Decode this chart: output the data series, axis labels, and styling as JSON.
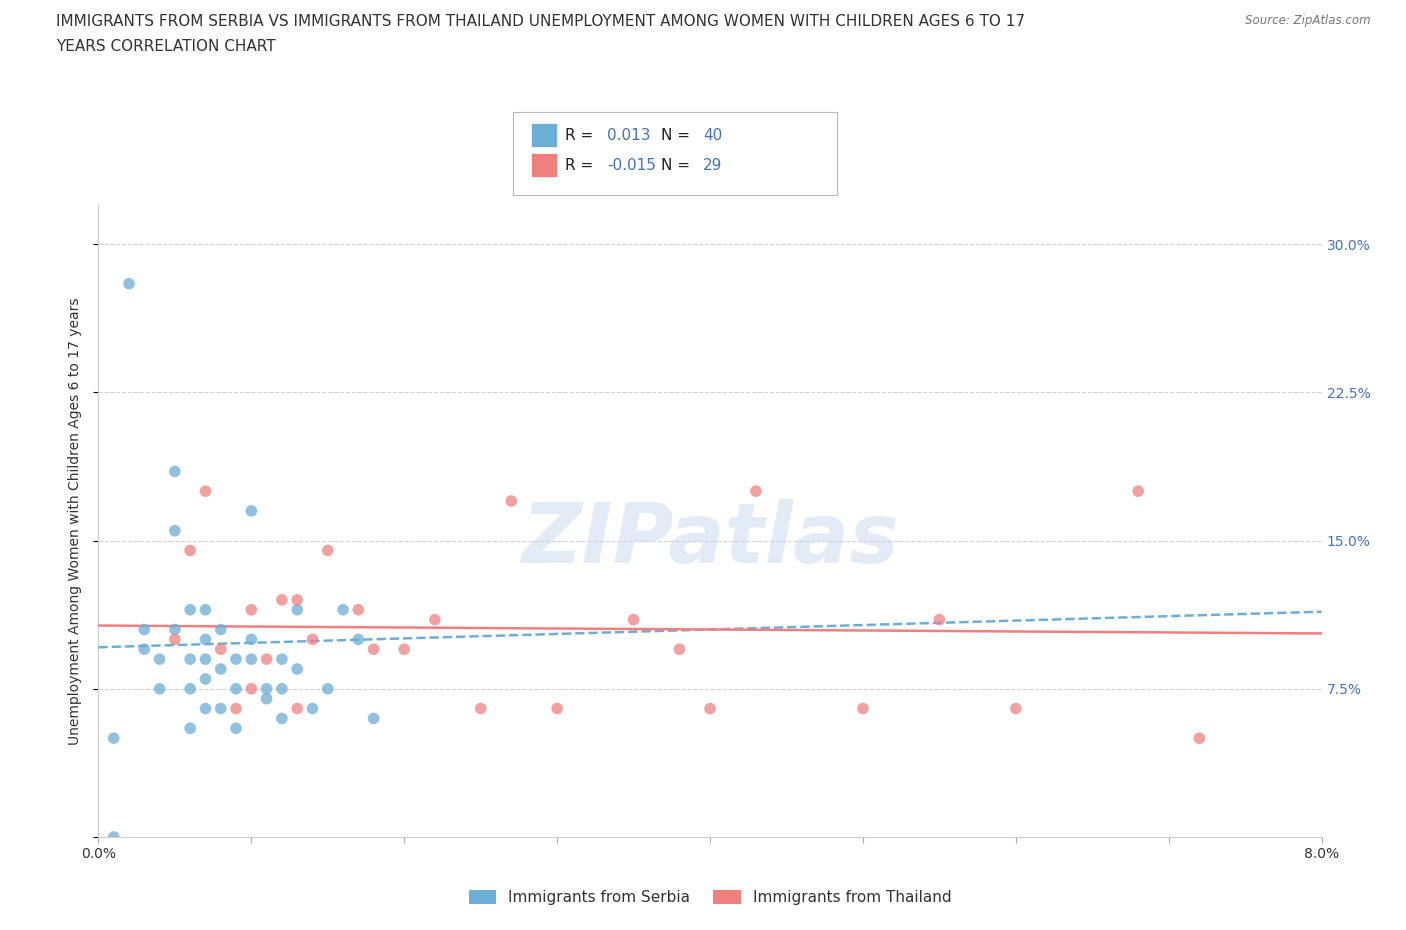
{
  "title_line1": "IMMIGRANTS FROM SERBIA VS IMMIGRANTS FROM THAILAND UNEMPLOYMENT AMONG WOMEN WITH CHILDREN AGES 6 TO 17",
  "title_line2": "YEARS CORRELATION CHART",
  "source": "Source: ZipAtlas.com",
  "ylabel": "Unemployment Among Women with Children Ages 6 to 17 years",
  "xlim": [
    0.0,
    0.08
  ],
  "ylim": [
    0.0,
    0.32
  ],
  "xticks": [
    0.0,
    0.01,
    0.02,
    0.03,
    0.04,
    0.05,
    0.06,
    0.07,
    0.08
  ],
  "ytick_positions": [
    0.0,
    0.075,
    0.15,
    0.225,
    0.3
  ],
  "ytick_labels_right": [
    "",
    "7.5%",
    "15.0%",
    "22.5%",
    "30.0%"
  ],
  "serbia_color": "#6baed6",
  "thailand_color": "#f08080",
  "serbia_R": 0.013,
  "serbia_N": 40,
  "thailand_R": -0.015,
  "thailand_N": 29,
  "legend_label_serbia": "Immigrants from Serbia",
  "legend_label_thailand": "Immigrants from Thailand",
  "watermark": "ZIPatlas",
  "serbia_x": [
    0.001,
    0.001,
    0.002,
    0.003,
    0.003,
    0.004,
    0.004,
    0.005,
    0.005,
    0.005,
    0.006,
    0.006,
    0.006,
    0.006,
    0.007,
    0.007,
    0.007,
    0.007,
    0.007,
    0.008,
    0.008,
    0.008,
    0.009,
    0.009,
    0.009,
    0.01,
    0.01,
    0.01,
    0.011,
    0.011,
    0.012,
    0.012,
    0.012,
    0.013,
    0.013,
    0.014,
    0.015,
    0.016,
    0.017,
    0.018
  ],
  "serbia_y": [
    0.0,
    0.05,
    0.28,
    0.095,
    0.105,
    0.075,
    0.09,
    0.155,
    0.105,
    0.185,
    0.055,
    0.075,
    0.09,
    0.115,
    0.065,
    0.08,
    0.09,
    0.1,
    0.115,
    0.065,
    0.085,
    0.105,
    0.055,
    0.075,
    0.09,
    0.09,
    0.1,
    0.165,
    0.07,
    0.075,
    0.06,
    0.075,
    0.09,
    0.085,
    0.115,
    0.065,
    0.075,
    0.115,
    0.1,
    0.06
  ],
  "thailand_x": [
    0.005,
    0.006,
    0.007,
    0.008,
    0.009,
    0.01,
    0.01,
    0.011,
    0.012,
    0.013,
    0.013,
    0.014,
    0.015,
    0.017,
    0.018,
    0.02,
    0.022,
    0.025,
    0.027,
    0.03,
    0.035,
    0.038,
    0.04,
    0.043,
    0.05,
    0.055,
    0.06,
    0.068,
    0.072
  ],
  "thailand_y": [
    0.1,
    0.145,
    0.175,
    0.095,
    0.065,
    0.075,
    0.115,
    0.09,
    0.12,
    0.065,
    0.12,
    0.1,
    0.145,
    0.115,
    0.095,
    0.095,
    0.11,
    0.065,
    0.17,
    0.065,
    0.11,
    0.095,
    0.065,
    0.175,
    0.065,
    0.11,
    0.065,
    0.175,
    0.05
  ],
  "background_color": "#ffffff",
  "grid_color": "#d0d0d0",
  "title_fontsize": 11,
  "axis_label_fontsize": 10,
  "tick_fontsize": 10,
  "serbia_trend_x": [
    0.0,
    0.08
  ],
  "serbia_trend_y": [
    0.096,
    0.114
  ],
  "thailand_trend_x": [
    0.0,
    0.08
  ],
  "thailand_trend_y": [
    0.107,
    0.103
  ]
}
